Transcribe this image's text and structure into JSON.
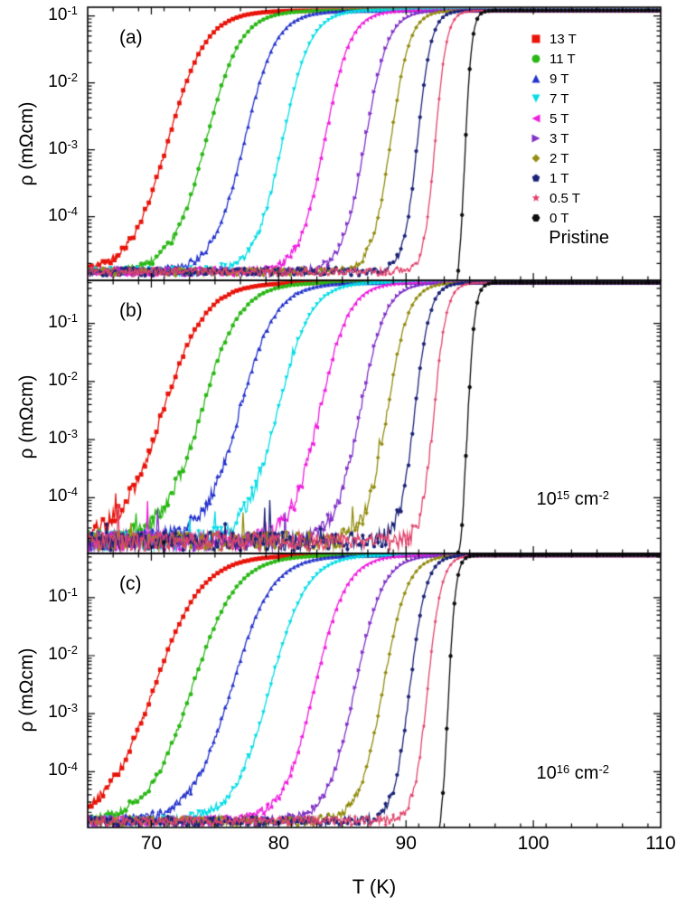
{
  "chart_data": {
    "type": "line",
    "title": "",
    "xlabel": "T (K)",
    "ylabel": "ρ (mΩcm)",
    "x_range": [
      65,
      110
    ],
    "x_ticks": [
      70,
      80,
      90,
      100,
      110
    ],
    "x_minor_step": 2,
    "log_y": true,
    "legend_position": "top-right-panel-a",
    "series_styles": [
      {
        "label": "13 T",
        "color": "#e81309",
        "marker": "square"
      },
      {
        "label": "11 T",
        "color": "#2bb817",
        "marker": "circle"
      },
      {
        "label": "9 T",
        "color": "#2433cc",
        "marker": "triangle-up"
      },
      {
        "label": "7 T",
        "color": "#06dce6",
        "marker": "triangle-down"
      },
      {
        "label": "5 T",
        "color": "#ef1ddd",
        "marker": "triangle-left"
      },
      {
        "label": "3 T",
        "color": "#8031c7",
        "marker": "triangle-right"
      },
      {
        "label": "2 T",
        "color": "#938d11",
        "marker": "diamond"
      },
      {
        "label": "1 T",
        "color": "#1c2377",
        "marker": "pentagon"
      },
      {
        "label": "0.5 T",
        "color": "#e1446d",
        "marker": "star"
      },
      {
        "label": "0 T",
        "color": "#0d0d0d",
        "marker": "hexagon"
      }
    ],
    "y_tick_exponents": [
      -1,
      -2,
      -3,
      -4
    ],
    "panels": [
      {
        "id": "a",
        "tag": "(a)",
        "annotation": {
          "parts": [
            {
              "t": "Pristine"
            }
          ]
        },
        "ylog_range": [
          -4.95,
          -0.87
        ],
        "normal_state_log_rho": -0.92,
        "noise_floor_log_rho": -4.82,
        "noise_amp": 0.06,
        "transitions": [
          {
            "field": "13 T",
            "tc_mid_K": 71.3,
            "width_K": 1.5
          },
          {
            "field": "11 T",
            "tc_mid_K": 74.3,
            "width_K": 1.35
          },
          {
            "field": "9 T",
            "tc_mid_K": 77.3,
            "width_K": 1.25
          },
          {
            "field": "7 T",
            "tc_mid_K": 80.3,
            "width_K": 1.1
          },
          {
            "field": "5 T",
            "tc_mid_K": 83.6,
            "width_K": 1.0
          },
          {
            "field": "3 T",
            "tc_mid_K": 86.8,
            "width_K": 0.9
          },
          {
            "field": "2 T",
            "tc_mid_K": 88.8,
            "width_K": 0.75
          },
          {
            "field": "1 T",
            "tc_mid_K": 90.9,
            "width_K": 0.55
          },
          {
            "field": "0.5 T",
            "tc_mid_K": 92.3,
            "width_K": 0.45
          },
          {
            "field": "0 T",
            "tc_mid_K": 94.6,
            "width_K": 0.28
          }
        ]
      },
      {
        "id": "b",
        "tag": "(b)",
        "annotation": {
          "parts": [
            {
              "t": "10"
            },
            {
              "t": "15",
              "sup": true
            },
            {
              "t": " cm"
            },
            {
              "t": "-2",
              "sup": true
            }
          ]
        },
        "ylog_range": [
          -4.96,
          -0.26
        ],
        "normal_state_log_rho": -0.3,
        "noise_floor_log_rho": -4.75,
        "noise_amp": 0.16,
        "transitions": [
          {
            "field": "13 T",
            "tc_mid_K": 70.9,
            "width_K": 1.7
          },
          {
            "field": "11 T",
            "tc_mid_K": 73.9,
            "width_K": 1.55
          },
          {
            "field": "9 T",
            "tc_mid_K": 76.9,
            "width_K": 1.45
          },
          {
            "field": "7 T",
            "tc_mid_K": 79.9,
            "width_K": 1.3
          },
          {
            "field": "5 T",
            "tc_mid_K": 83.2,
            "width_K": 1.15
          },
          {
            "field": "3 T",
            "tc_mid_K": 86.4,
            "width_K": 1.0
          },
          {
            "field": "2 T",
            "tc_mid_K": 88.5,
            "width_K": 0.85
          },
          {
            "field": "1 T",
            "tc_mid_K": 90.7,
            "width_K": 0.6
          },
          {
            "field": "0.5 T",
            "tc_mid_K": 92.2,
            "width_K": 0.5
          },
          {
            "field": "0 T",
            "tc_mid_K": 94.8,
            "width_K": 0.3
          }
        ]
      },
      {
        "id": "c",
        "tag": "(c)",
        "annotation": {
          "parts": [
            {
              "t": "10"
            },
            {
              "t": "16",
              "sup": true
            },
            {
              "t": " cm"
            },
            {
              "t": "-2",
              "sup": true
            }
          ]
        },
        "ylog_range": [
          -4.96,
          -0.24
        ],
        "normal_state_log_rho": -0.27,
        "noise_floor_log_rho": -4.85,
        "noise_amp": 0.08,
        "transitions": [
          {
            "field": "13 T",
            "tc_mid_K": 70.2,
            "width_K": 1.9
          },
          {
            "field": "11 T",
            "tc_mid_K": 73.2,
            "width_K": 1.75
          },
          {
            "field": "9 T",
            "tc_mid_K": 76.3,
            "width_K": 1.6
          },
          {
            "field": "7 T",
            "tc_mid_K": 79.3,
            "width_K": 1.45
          },
          {
            "field": "5 T",
            "tc_mid_K": 82.8,
            "width_K": 1.25
          },
          {
            "field": "3 T",
            "tc_mid_K": 86.0,
            "width_K": 1.1
          },
          {
            "field": "2 T",
            "tc_mid_K": 88.2,
            "width_K": 0.95
          },
          {
            "field": "1 T",
            "tc_mid_K": 90.3,
            "width_K": 0.65
          },
          {
            "field": "0.5 T",
            "tc_mid_K": 91.7,
            "width_K": 0.55
          },
          {
            "field": "0 T",
            "tc_mid_K": 93.3,
            "width_K": 0.3
          }
        ]
      }
    ]
  }
}
